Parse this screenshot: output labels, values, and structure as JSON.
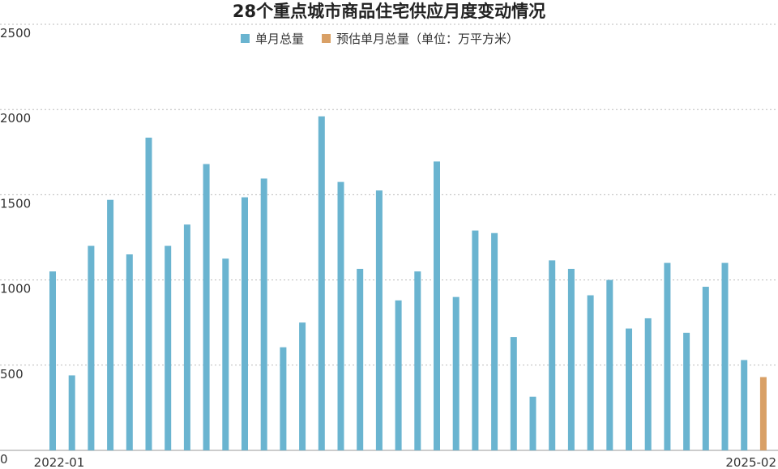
{
  "chart_data": {
    "type": "bar",
    "title": "28个重点城市商品住宅供应月度变动情况",
    "categories": [
      "2022-01",
      null,
      null,
      null,
      null,
      null,
      null,
      null,
      null,
      null,
      null,
      null,
      null,
      null,
      null,
      null,
      null,
      null,
      null,
      null,
      null,
      null,
      null,
      null,
      null,
      null,
      null,
      null,
      null,
      null,
      null,
      null,
      null,
      null,
      null,
      null,
      null,
      "2025-02"
    ],
    "series": [
      {
        "name": "单月总量",
        "color": "#6ab4d0",
        "values": [
          1050,
          440,
          1200,
          1470,
          1150,
          1835,
          1200,
          1325,
          1680,
          1125,
          1485,
          1595,
          605,
          750,
          1960,
          1575,
          1065,
          1525,
          880,
          1050,
          1695,
          900,
          1290,
          1275,
          665,
          315,
          1115,
          1065,
          910,
          1000,
          715,
          775,
          1100,
          690,
          960,
          1100,
          530,
          null
        ]
      },
      {
        "name": "预估单月总量（单位：万平方米）",
        "color": "#d9a066",
        "values": [
          null,
          null,
          null,
          null,
          null,
          null,
          null,
          null,
          null,
          null,
          null,
          null,
          null,
          null,
          null,
          null,
          null,
          null,
          null,
          null,
          null,
          null,
          null,
          null,
          null,
          null,
          null,
          null,
          null,
          null,
          null,
          null,
          null,
          null,
          null,
          null,
          null,
          430
        ]
      }
    ],
    "ylim": [
      0,
      2500
    ],
    "yticks": [
      0,
      500,
      1000,
      1500,
      2000,
      2500
    ],
    "grid": true
  }
}
